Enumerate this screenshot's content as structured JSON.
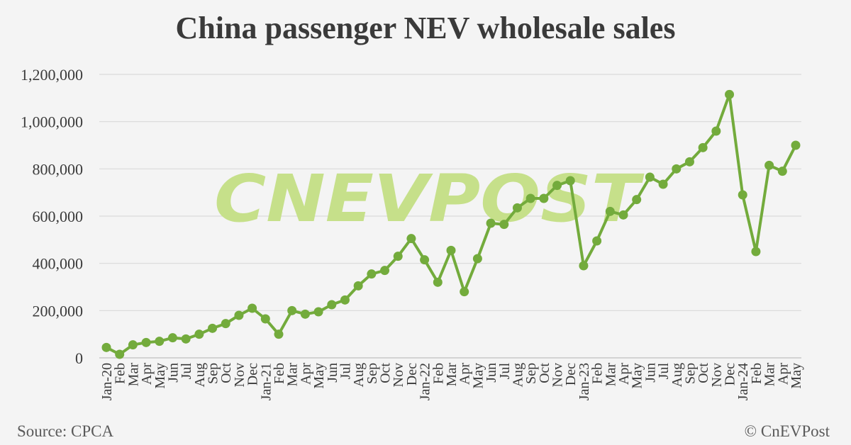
{
  "title": "China passenger NEV wholesale sales",
  "source": "Source: CPCA",
  "credit": "© CnEVPost",
  "watermark": "CNEVPOST",
  "chart_data": {
    "type": "line",
    "title": "China passenger NEV wholesale sales",
    "xlabel": "",
    "ylabel": "",
    "ylim": [
      0,
      1200000
    ],
    "yticks": [
      0,
      200000,
      400000,
      600000,
      800000,
      1000000,
      1200000
    ],
    "ytick_labels": [
      "0",
      "200,000",
      "400,000",
      "600,000",
      "800,000",
      "1,000,000",
      "1,200,000"
    ],
    "grid": true,
    "legend": "none",
    "colors": {
      "line": "#73ab3c",
      "grid": "#d9d9d9",
      "text": "#3a3a3a",
      "watermark": "#c6e08a"
    },
    "categories": [
      "Jan-20",
      "Feb",
      "Mar",
      "Apr",
      "May",
      "Jun",
      "Jul",
      "Aug",
      "Sep",
      "Oct",
      "Nov",
      "Dec",
      "Jan-21",
      "Feb",
      "Mar",
      "Apr",
      "May",
      "Jun",
      "Jul",
      "Aug",
      "Sep",
      "Oct",
      "Nov",
      "Dec",
      "Jan-22",
      "Feb",
      "Mar",
      "Apr",
      "May",
      "Jun",
      "Jul",
      "Aug",
      "Sep",
      "Oct",
      "Nov",
      "Dec",
      "Jan-23",
      "Feb",
      "Mar",
      "Apr",
      "May",
      "Jun",
      "Jul",
      "Aug",
      "Sep",
      "Oct",
      "Nov",
      "Dec",
      "Jan-24",
      "Feb",
      "Mar",
      "Apr",
      "May"
    ],
    "series": [
      {
        "values": [
          44000,
          15000,
          55000,
          65000,
          70000,
          85000,
          80000,
          100000,
          125000,
          145000,
          180000,
          210000,
          165000,
          100000,
          200000,
          185000,
          195000,
          225000,
          245000,
          305000,
          355000,
          370000,
          430000,
          505000,
          415000,
          320000,
          455000,
          280000,
          420000,
          570000,
          565000,
          635000,
          675000,
          675000,
          730000,
          750000,
          390000,
          495000,
          620000,
          605000,
          670000,
          765000,
          735000,
          800000,
          830000,
          890000,
          960000,
          1115000,
          690000,
          450000,
          815000,
          790000,
          900000
        ]
      }
    ]
  }
}
